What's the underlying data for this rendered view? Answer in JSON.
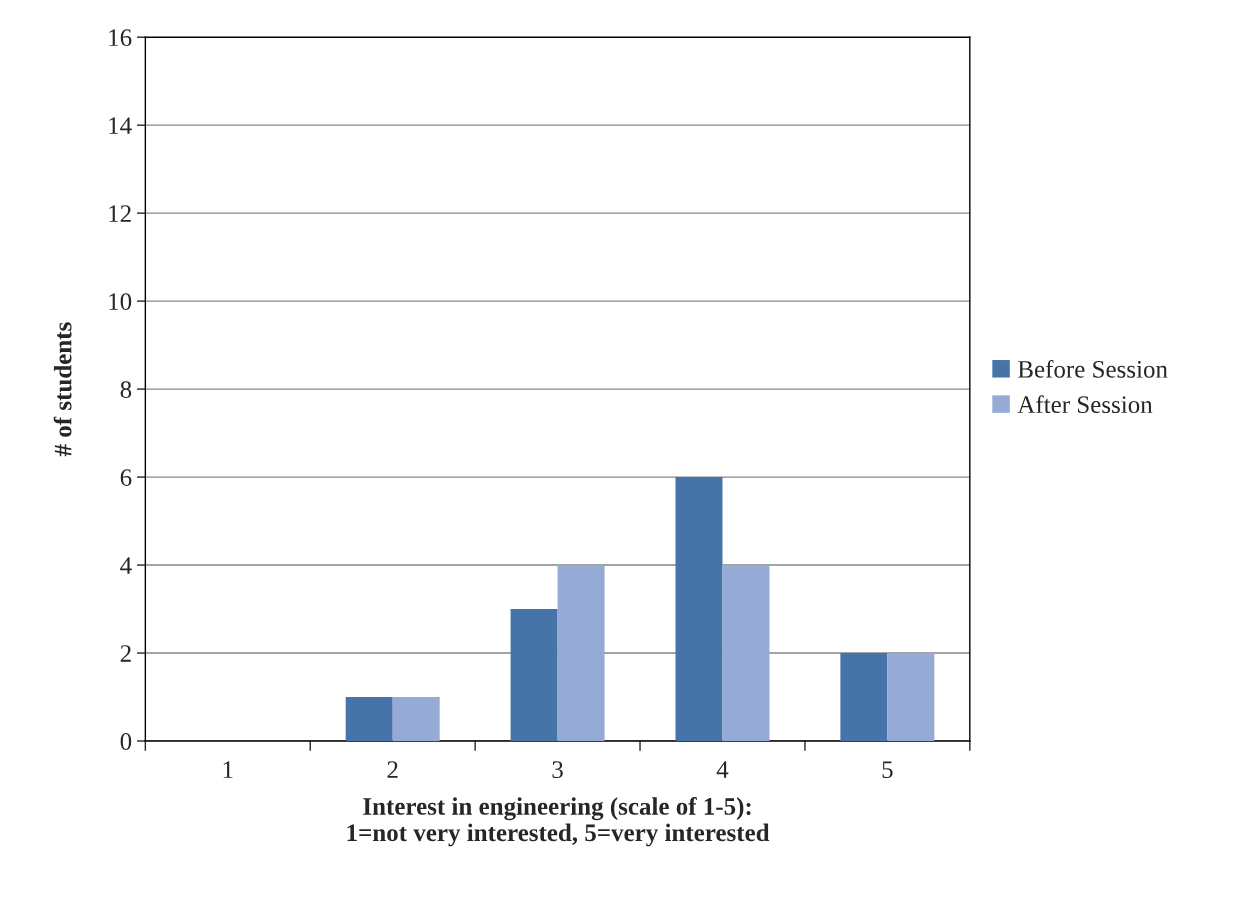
{
  "chart_data": {
    "type": "bar",
    "categories": [
      "1",
      "2",
      "3",
      "4",
      "5"
    ],
    "series": [
      {
        "name": "Before Session",
        "color": "#4674a9",
        "values": [
          0,
          1,
          3,
          6,
          2
        ]
      },
      {
        "name": "After Session",
        "color": "#95aad4",
        "values": [
          0,
          1,
          4,
          4,
          2
        ]
      }
    ],
    "xlabel": "Interest in engineering (scale of 1-5):\n1=not very interested, 5=very interested",
    "ylabel": "# of students",
    "ylim": [
      0,
      16
    ],
    "yticks": [
      0,
      2,
      4,
      6,
      8,
      10,
      12,
      14,
      16
    ],
    "grid": "y",
    "legend": "right"
  }
}
